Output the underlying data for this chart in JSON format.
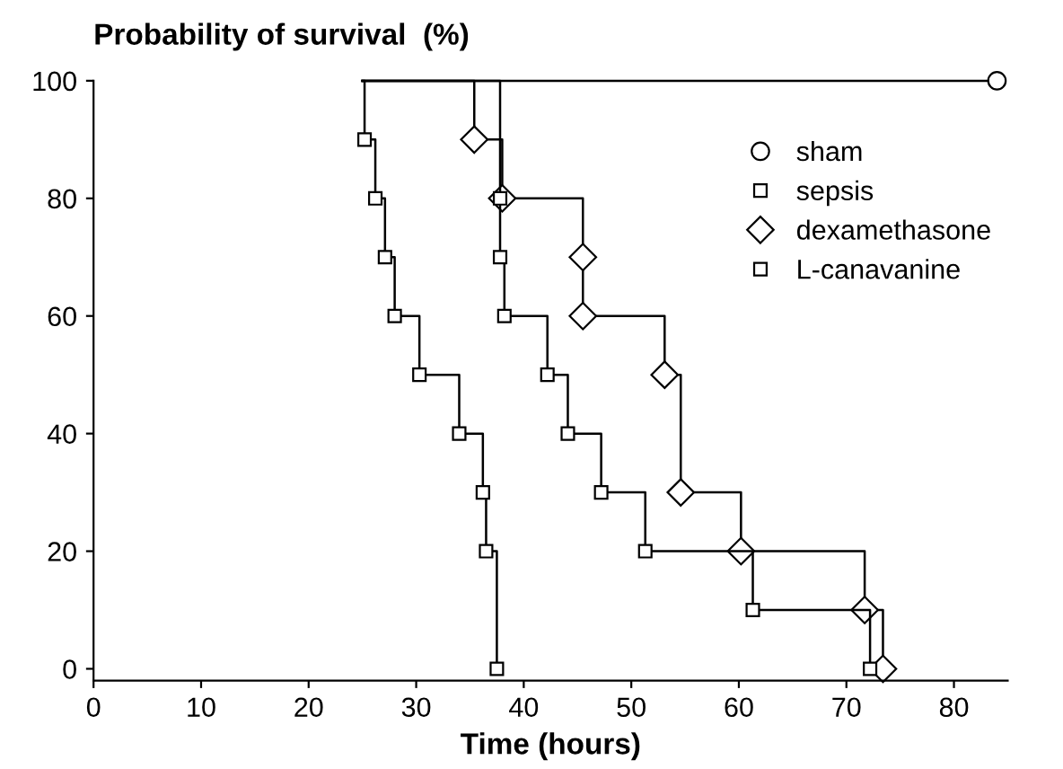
{
  "chart_data": {
    "type": "step",
    "ylabel": "Probability of survival  (%)",
    "xlabel": "Time (hours)",
    "xlim": [
      0,
      85
    ],
    "xticks": [
      0,
      10,
      20,
      30,
      40,
      50,
      60,
      70,
      80
    ],
    "ylim": [
      -2,
      100
    ],
    "yticks": [
      0,
      20,
      40,
      60,
      80,
      100
    ],
    "grid": false,
    "legend": "right",
    "line_style": "solid",
    "series": [
      {
        "name": "sham",
        "color": "#000000",
        "marker": "circle",
        "x": [
          25,
          84
        ],
        "values": [
          100,
          100
        ]
      },
      {
        "name": "sepsis",
        "color": "#000000",
        "marker": "square",
        "x": [
          25,
          25.2,
          26.2,
          27.1,
          28,
          30.3,
          34,
          36.2,
          36.5,
          37.5
        ],
        "values": [
          100,
          90,
          80,
          70,
          60,
          50,
          40,
          30,
          20,
          0
        ]
      },
      {
        "name": "dexamethasone",
        "color": "#000000",
        "marker": "diamond",
        "x": [
          25,
          35.4,
          38,
          45.5,
          45.5,
          53.1,
          54.6,
          60.2,
          71.7,
          73.4
        ],
        "values": [
          100,
          90,
          80,
          70,
          60,
          50,
          30,
          20,
          10,
          0
        ]
      },
      {
        "name": "L-canavanine",
        "color": "#000000",
        "marker": "square",
        "x": [
          25,
          37.8,
          37.8,
          38.2,
          42.2,
          44.1,
          47.2,
          51.3,
          61.3,
          72.2
        ],
        "values": [
          100,
          80,
          70,
          60,
          50,
          40,
          30,
          20,
          10,
          0
        ]
      }
    ]
  }
}
